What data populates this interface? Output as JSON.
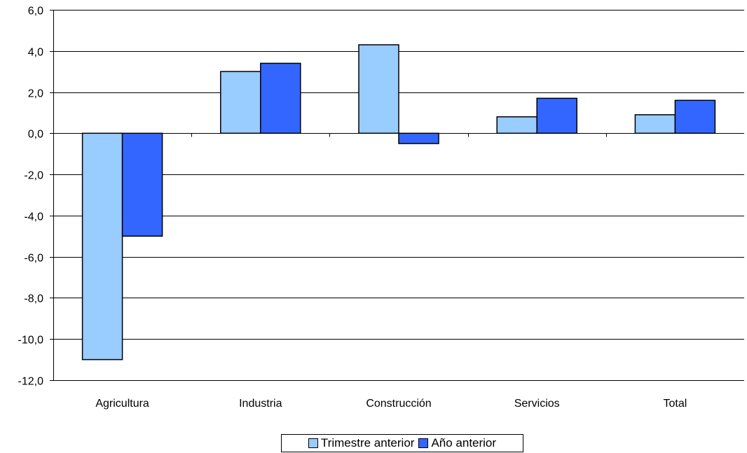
{
  "chart_data": {
    "type": "bar",
    "categories": [
      "Agricultura",
      "Industria",
      "Construcción",
      "Servicios",
      "Total"
    ],
    "series": [
      {
        "name": "Trimestre anterior",
        "color": "#99CCFF",
        "values": [
          -11.0,
          3.0,
          4.3,
          0.8,
          0.9
        ]
      },
      {
        "name": "Año anterior",
        "color": "#3366FF",
        "values": [
          -5.0,
          3.4,
          -0.5,
          1.7,
          1.6
        ]
      }
    ],
    "title": "",
    "xlabel": "",
    "ylabel": "",
    "ylim": [
      -12,
      6
    ],
    "yticks": [
      6,
      4,
      2,
      0,
      -2,
      -4,
      -6,
      -8,
      -10,
      -12
    ],
    "ytick_labels": [
      "6,0",
      "4,0",
      "2,0",
      "0,0",
      "-2,0",
      "-4,0",
      "-6,0",
      "-8,0",
      "-10,0",
      "-12,0"
    ],
    "grid": true,
    "legend_position": "bottom"
  }
}
